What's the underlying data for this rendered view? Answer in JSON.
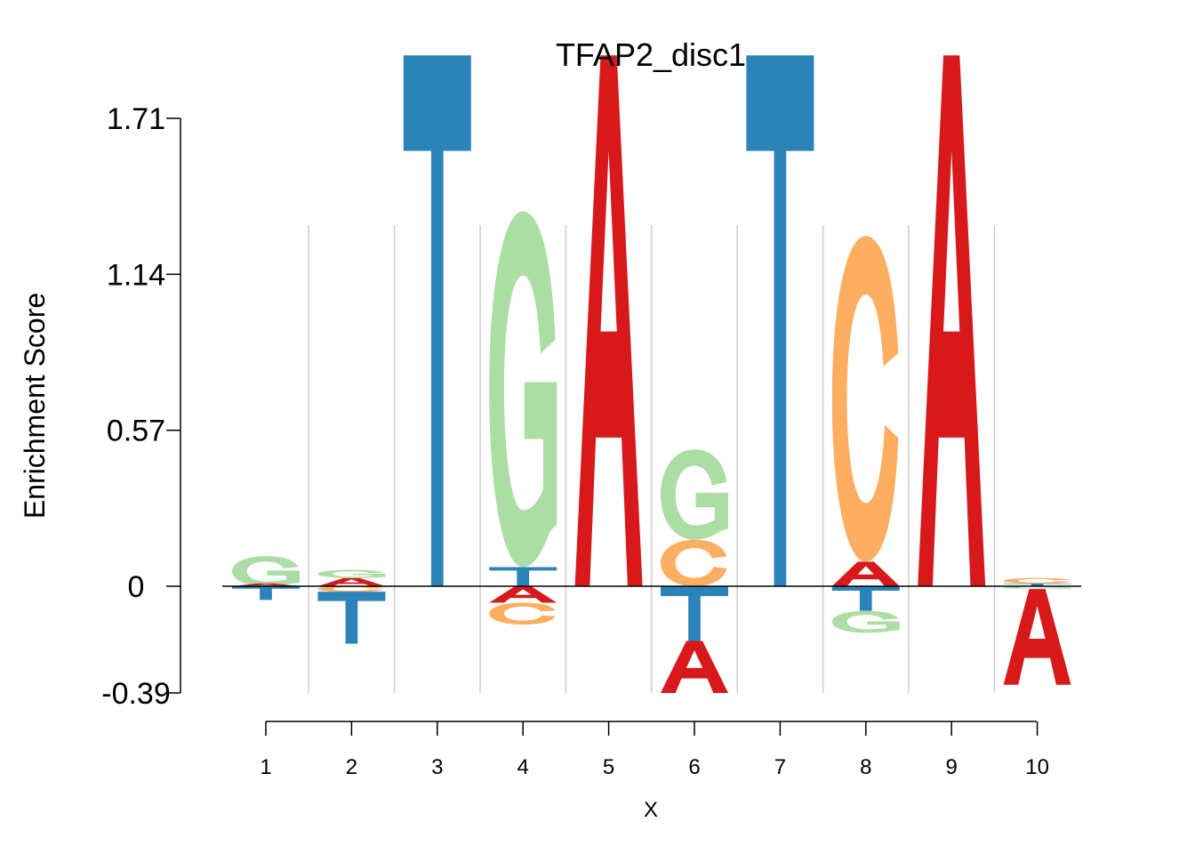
{
  "chart_data": {
    "type": "sequence-logo",
    "title": "TFAP2_disc1",
    "xlabel": "X",
    "ylabel": "Enrichment Score",
    "yticks": [
      "1.71",
      "1.14",
      "0.57",
      "0",
      "-0.39"
    ],
    "ytick_values": [
      1.71,
      1.14,
      0.57,
      0,
      -0.39
    ],
    "ylim": [
      -0.39,
      1.71
    ],
    "x": [
      1,
      2,
      3,
      4,
      5,
      6,
      7,
      8,
      9,
      10
    ],
    "colors": {
      "A": "#d7191c",
      "C": "#fdae61",
      "G": "#abdda4",
      "T": "#2b83ba"
    },
    "positions": [
      {
        "pos": 1,
        "letters": [
          {
            "base": "G",
            "from": 0.0,
            "to": 0.11
          },
          {
            "base": "A",
            "from": 0.0,
            "to": 0.01
          },
          {
            "base": "T",
            "from": -0.05,
            "to": -0.0
          }
        ]
      },
      {
        "pos": 2,
        "letters": [
          {
            "base": "A",
            "from": 0.0,
            "to": 0.03
          },
          {
            "base": "G",
            "from": 0.03,
            "to": 0.06
          },
          {
            "base": "C",
            "from": -0.02,
            "to": 0.0
          },
          {
            "base": "T",
            "from": -0.21,
            "to": -0.02
          }
        ]
      },
      {
        "pos": 3,
        "letters": [
          {
            "base": "T",
            "from": 0.0,
            "to": 1.94
          }
        ]
      },
      {
        "pos": 4,
        "letters": [
          {
            "base": "T",
            "from": 0.0,
            "to": 0.07
          },
          {
            "base": "G",
            "from": 0.07,
            "to": 1.37
          },
          {
            "base": "A",
            "from": -0.06,
            "to": 0.0
          },
          {
            "base": "C",
            "from": -0.14,
            "to": -0.06
          }
        ]
      },
      {
        "pos": 5,
        "letters": [
          {
            "base": "A",
            "from": 0.0,
            "to": 1.94
          }
        ]
      },
      {
        "pos": 6,
        "letters": [
          {
            "base": "C",
            "from": 0.0,
            "to": 0.17
          },
          {
            "base": "G",
            "from": 0.17,
            "to": 0.5
          },
          {
            "base": "T",
            "from": -0.2,
            "to": 0.0
          },
          {
            "base": "A",
            "from": -0.39,
            "to": -0.2
          }
        ]
      },
      {
        "pos": 7,
        "letters": [
          {
            "base": "T",
            "from": 0.0,
            "to": 1.94
          }
        ]
      },
      {
        "pos": 8,
        "letters": [
          {
            "base": "A",
            "from": 0.0,
            "to": 0.09
          },
          {
            "base": "C",
            "from": 0.09,
            "to": 1.28
          },
          {
            "base": "T",
            "from": -0.09,
            "to": 0.0
          },
          {
            "base": "G",
            "from": -0.17,
            "to": -0.09
          }
        ]
      },
      {
        "pos": 9,
        "letters": [
          {
            "base": "A",
            "from": 0.0,
            "to": 1.94
          }
        ]
      },
      {
        "pos": 10,
        "letters": [
          {
            "base": "T",
            "from": 0.0,
            "to": 0.01
          },
          {
            "base": "C",
            "from": 0.01,
            "to": 0.03
          },
          {
            "base": "G",
            "from": -0.01,
            "to": 0.0
          },
          {
            "base": "A",
            "from": -0.36,
            "to": -0.01
          }
        ]
      }
    ]
  }
}
